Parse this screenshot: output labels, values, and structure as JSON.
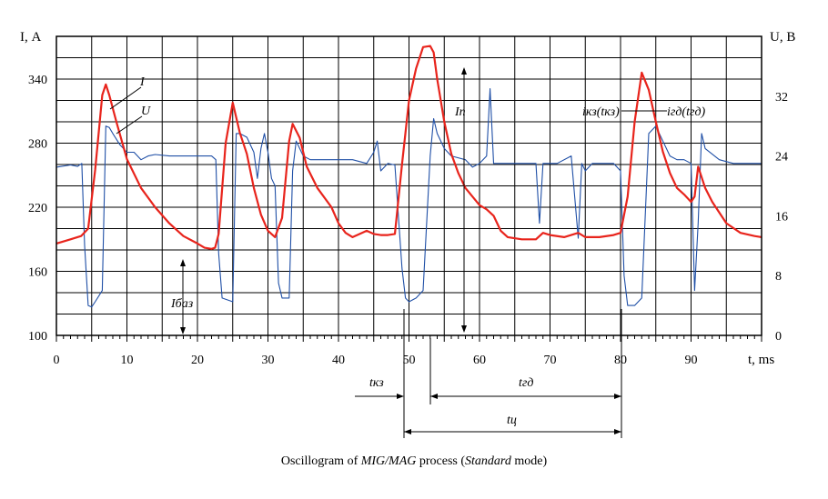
{
  "chart_data": {
    "type": "line",
    "caption": {
      "prefix": "Oscillogram of ",
      "process": "MIG/MAG",
      "middle": " process (",
      "mode": "Standard",
      "suffix": " mode)"
    },
    "xlabel": "t, ms",
    "ylabel_left": "I, А",
    "ylabel_right": "U, В",
    "xlim": [
      0,
      100
    ],
    "ylim_left": [
      100,
      380
    ],
    "ylim_right": [
      0,
      40
    ],
    "x_ticks": [
      0,
      10,
      20,
      30,
      40,
      50,
      60,
      70,
      80,
      90
    ],
    "y_ticks_left": [
      100,
      160,
      220,
      280,
      340
    ],
    "y_ticks_right": [
      0,
      8,
      16,
      24,
      32
    ],
    "grid": true,
    "series": [
      {
        "name": "I",
        "color": "#e8241c",
        "axis": "left",
        "points": [
          [
            0,
            186
          ],
          [
            2,
            190
          ],
          [
            3.5,
            193
          ],
          [
            4.5,
            200
          ],
          [
            5.5,
            255
          ],
          [
            6.5,
            325
          ],
          [
            7,
            335
          ],
          [
            7.5,
            325
          ],
          [
            8.5,
            300
          ],
          [
            10,
            265
          ],
          [
            12,
            238
          ],
          [
            14,
            220
          ],
          [
            16,
            205
          ],
          [
            18,
            193
          ],
          [
            20,
            186
          ],
          [
            21,
            182
          ],
          [
            22,
            181
          ],
          [
            22.5,
            182
          ],
          [
            23,
            195
          ],
          [
            24,
            280
          ],
          [
            25,
            318
          ],
          [
            26,
            290
          ],
          [
            27,
            270
          ],
          [
            28,
            238
          ],
          [
            29,
            213
          ],
          [
            30,
            198
          ],
          [
            31,
            192
          ],
          [
            32,
            210
          ],
          [
            33,
            282
          ],
          [
            33.5,
            298
          ],
          [
            34.5,
            285
          ],
          [
            35.5,
            258
          ],
          [
            37,
            238
          ],
          [
            39,
            220
          ],
          [
            40,
            205
          ],
          [
            41,
            196
          ],
          [
            42,
            192
          ],
          [
            43,
            195
          ],
          [
            44,
            198
          ],
          [
            45,
            195
          ],
          [
            46,
            194
          ],
          [
            47,
            194
          ],
          [
            48,
            195
          ],
          [
            49,
            260
          ],
          [
            50,
            320
          ],
          [
            51,
            350
          ],
          [
            52,
            370
          ],
          [
            53,
            371
          ],
          [
            53.5,
            365
          ],
          [
            54,
            340
          ],
          [
            55,
            300
          ],
          [
            56,
            270
          ],
          [
            57,
            252
          ],
          [
            58,
            238
          ],
          [
            59,
            230
          ],
          [
            60,
            222
          ],
          [
            61,
            218
          ],
          [
            62,
            212
          ],
          [
            63,
            198
          ],
          [
            64,
            192
          ],
          [
            66,
            190
          ],
          [
            68,
            190
          ],
          [
            69,
            196
          ],
          [
            70,
            194
          ],
          [
            72,
            192
          ],
          [
            74,
            196
          ],
          [
            75,
            192
          ],
          [
            77,
            192
          ],
          [
            79,
            194
          ],
          [
            80,
            196
          ],
          [
            81,
            230
          ],
          [
            82,
            300
          ],
          [
            83,
            346
          ],
          [
            84,
            330
          ],
          [
            85,
            300
          ],
          [
            86,
            272
          ],
          [
            87,
            252
          ],
          [
            88,
            238
          ],
          [
            89,
            232
          ],
          [
            90,
            225
          ],
          [
            90.5,
            230
          ],
          [
            91,
            258
          ],
          [
            92,
            238
          ],
          [
            93,
            225
          ],
          [
            95,
            205
          ],
          [
            97,
            196
          ],
          [
            99,
            193
          ],
          [
            100,
            192
          ]
        ]
      },
      {
        "name": "U",
        "color": "#1f4fa6",
        "axis": "right",
        "points": [
          [
            0,
            22.5
          ],
          [
            2,
            22.8
          ],
          [
            3,
            22.6
          ],
          [
            3.6,
            23
          ],
          [
            4,
            12
          ],
          [
            4.5,
            4
          ],
          [
            5,
            3.8
          ],
          [
            5.5,
            4.5
          ],
          [
            6.5,
            6
          ],
          [
            7,
            28
          ],
          [
            7.5,
            27.8
          ],
          [
            8,
            27
          ],
          [
            9,
            25.5
          ],
          [
            10,
            24.5
          ],
          [
            11,
            24.5
          ],
          [
            12,
            23.5
          ],
          [
            13,
            24
          ],
          [
            14,
            24.2
          ],
          [
            16,
            24
          ],
          [
            18,
            24
          ],
          [
            20,
            24
          ],
          [
            22,
            24
          ],
          [
            22.6,
            23.5
          ],
          [
            23,
            11
          ],
          [
            23.5,
            5
          ],
          [
            25,
            4.5
          ],
          [
            25.5,
            27
          ],
          [
            26,
            27
          ],
          [
            27,
            26.5
          ],
          [
            28,
            24.5
          ],
          [
            28.5,
            21
          ],
          [
            29,
            25
          ],
          [
            29.5,
            27
          ],
          [
            30,
            24.5
          ],
          [
            30.5,
            21
          ],
          [
            31,
            20
          ],
          [
            31.5,
            7
          ],
          [
            32,
            5
          ],
          [
            33,
            5
          ],
          [
            33.5,
            22
          ],
          [
            34,
            26
          ],
          [
            35,
            24
          ],
          [
            36,
            23.5
          ],
          [
            38,
            23.5
          ],
          [
            40,
            23.5
          ],
          [
            42,
            23.5
          ],
          [
            44,
            23
          ],
          [
            45,
            24.5
          ],
          [
            45.5,
            26
          ],
          [
            46,
            22
          ],
          [
            47,
            23
          ],
          [
            48,
            22.8
          ],
          [
            49,
            9
          ],
          [
            49.5,
            5
          ],
          [
            50,
            4.5
          ],
          [
            51,
            5
          ],
          [
            52,
            6
          ],
          [
            53,
            24
          ],
          [
            53.5,
            29
          ],
          [
            54,
            27
          ],
          [
            55,
            25
          ],
          [
            56,
            24
          ],
          [
            58,
            23.5
          ],
          [
            59,
            22.5
          ],
          [
            60,
            23
          ],
          [
            61,
            24
          ],
          [
            61.5,
            33
          ],
          [
            62,
            23
          ],
          [
            64,
            23
          ],
          [
            66,
            23
          ],
          [
            68,
            23
          ],
          [
            68.5,
            15
          ],
          [
            69,
            23
          ],
          [
            71,
            23
          ],
          [
            73,
            24
          ],
          [
            74,
            13
          ],
          [
            74.5,
            23
          ],
          [
            75,
            22
          ],
          [
            76,
            23
          ],
          [
            78,
            23
          ],
          [
            79,
            23
          ],
          [
            80,
            22
          ],
          [
            80.5,
            8
          ],
          [
            81,
            4
          ],
          [
            82,
            4
          ],
          [
            83,
            5
          ],
          [
            84,
            27
          ],
          [
            85,
            28
          ],
          [
            86,
            26
          ],
          [
            87,
            24
          ],
          [
            88,
            23.5
          ],
          [
            89,
            23.5
          ],
          [
            90,
            23
          ],
          [
            90.5,
            6
          ],
          [
            91,
            15
          ],
          [
            91.5,
            27
          ],
          [
            92,
            25
          ],
          [
            94,
            23.5
          ],
          [
            96,
            23
          ],
          [
            98,
            23
          ],
          [
            100,
            23
          ]
        ]
      }
    ],
    "annotations": {
      "label_I": "I",
      "label_U": "U",
      "I_n": "Iп",
      "I_baz": "Iбаз",
      "ikz": "iкз(tкз)",
      "igd": "iгд(tгд)",
      "t_kz": "tкз",
      "t_gd": "tгд",
      "t_c": "tц"
    }
  }
}
